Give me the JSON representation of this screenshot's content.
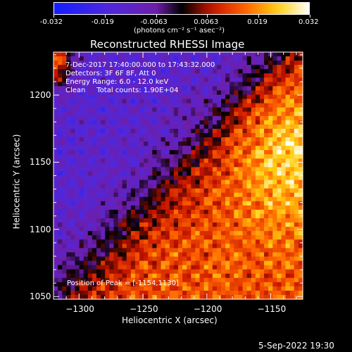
{
  "colorbar": {
    "ticks": [
      "-0.032",
      "-0.019",
      "-0.0063",
      "0.0063",
      "0.019",
      "0.032"
    ],
    "unit_label": "(photons cm⁻² s⁻¹ asec⁻²)"
  },
  "chart_data": {
    "type": "heatmap",
    "title": "Reconstructed RHESSI Image",
    "xlabel": "Heliocentric X (arcsec)",
    "ylabel": "Heliocentric Y (arcsec)",
    "xlim": [
      -1320,
      -1125
    ],
    "ylim": [
      1048,
      1232
    ],
    "xticks": [
      -1300,
      -1250,
      -1200,
      -1150
    ],
    "yticks": [
      1050,
      1100,
      1150,
      1200
    ],
    "colorbar_range": [
      -0.032,
      0.032
    ],
    "colormap": "blue-purple-black-red-yellow-white",
    "peak_position": [
      -1154,
      1130
    ],
    "info_lines": [
      " 7-Dec-2017 17:40:00.000 to 17:43:32.000",
      "Detectors: 3F 6F 8F, Att 0",
      "Energy Range: 6.0 - 12.0 keV",
      "Clean     Total counts: 1.90E+04"
    ],
    "peak_label": "Position of Peak = [-1154,1130]",
    "timestamp": "5-Sep-2022 19:30"
  }
}
